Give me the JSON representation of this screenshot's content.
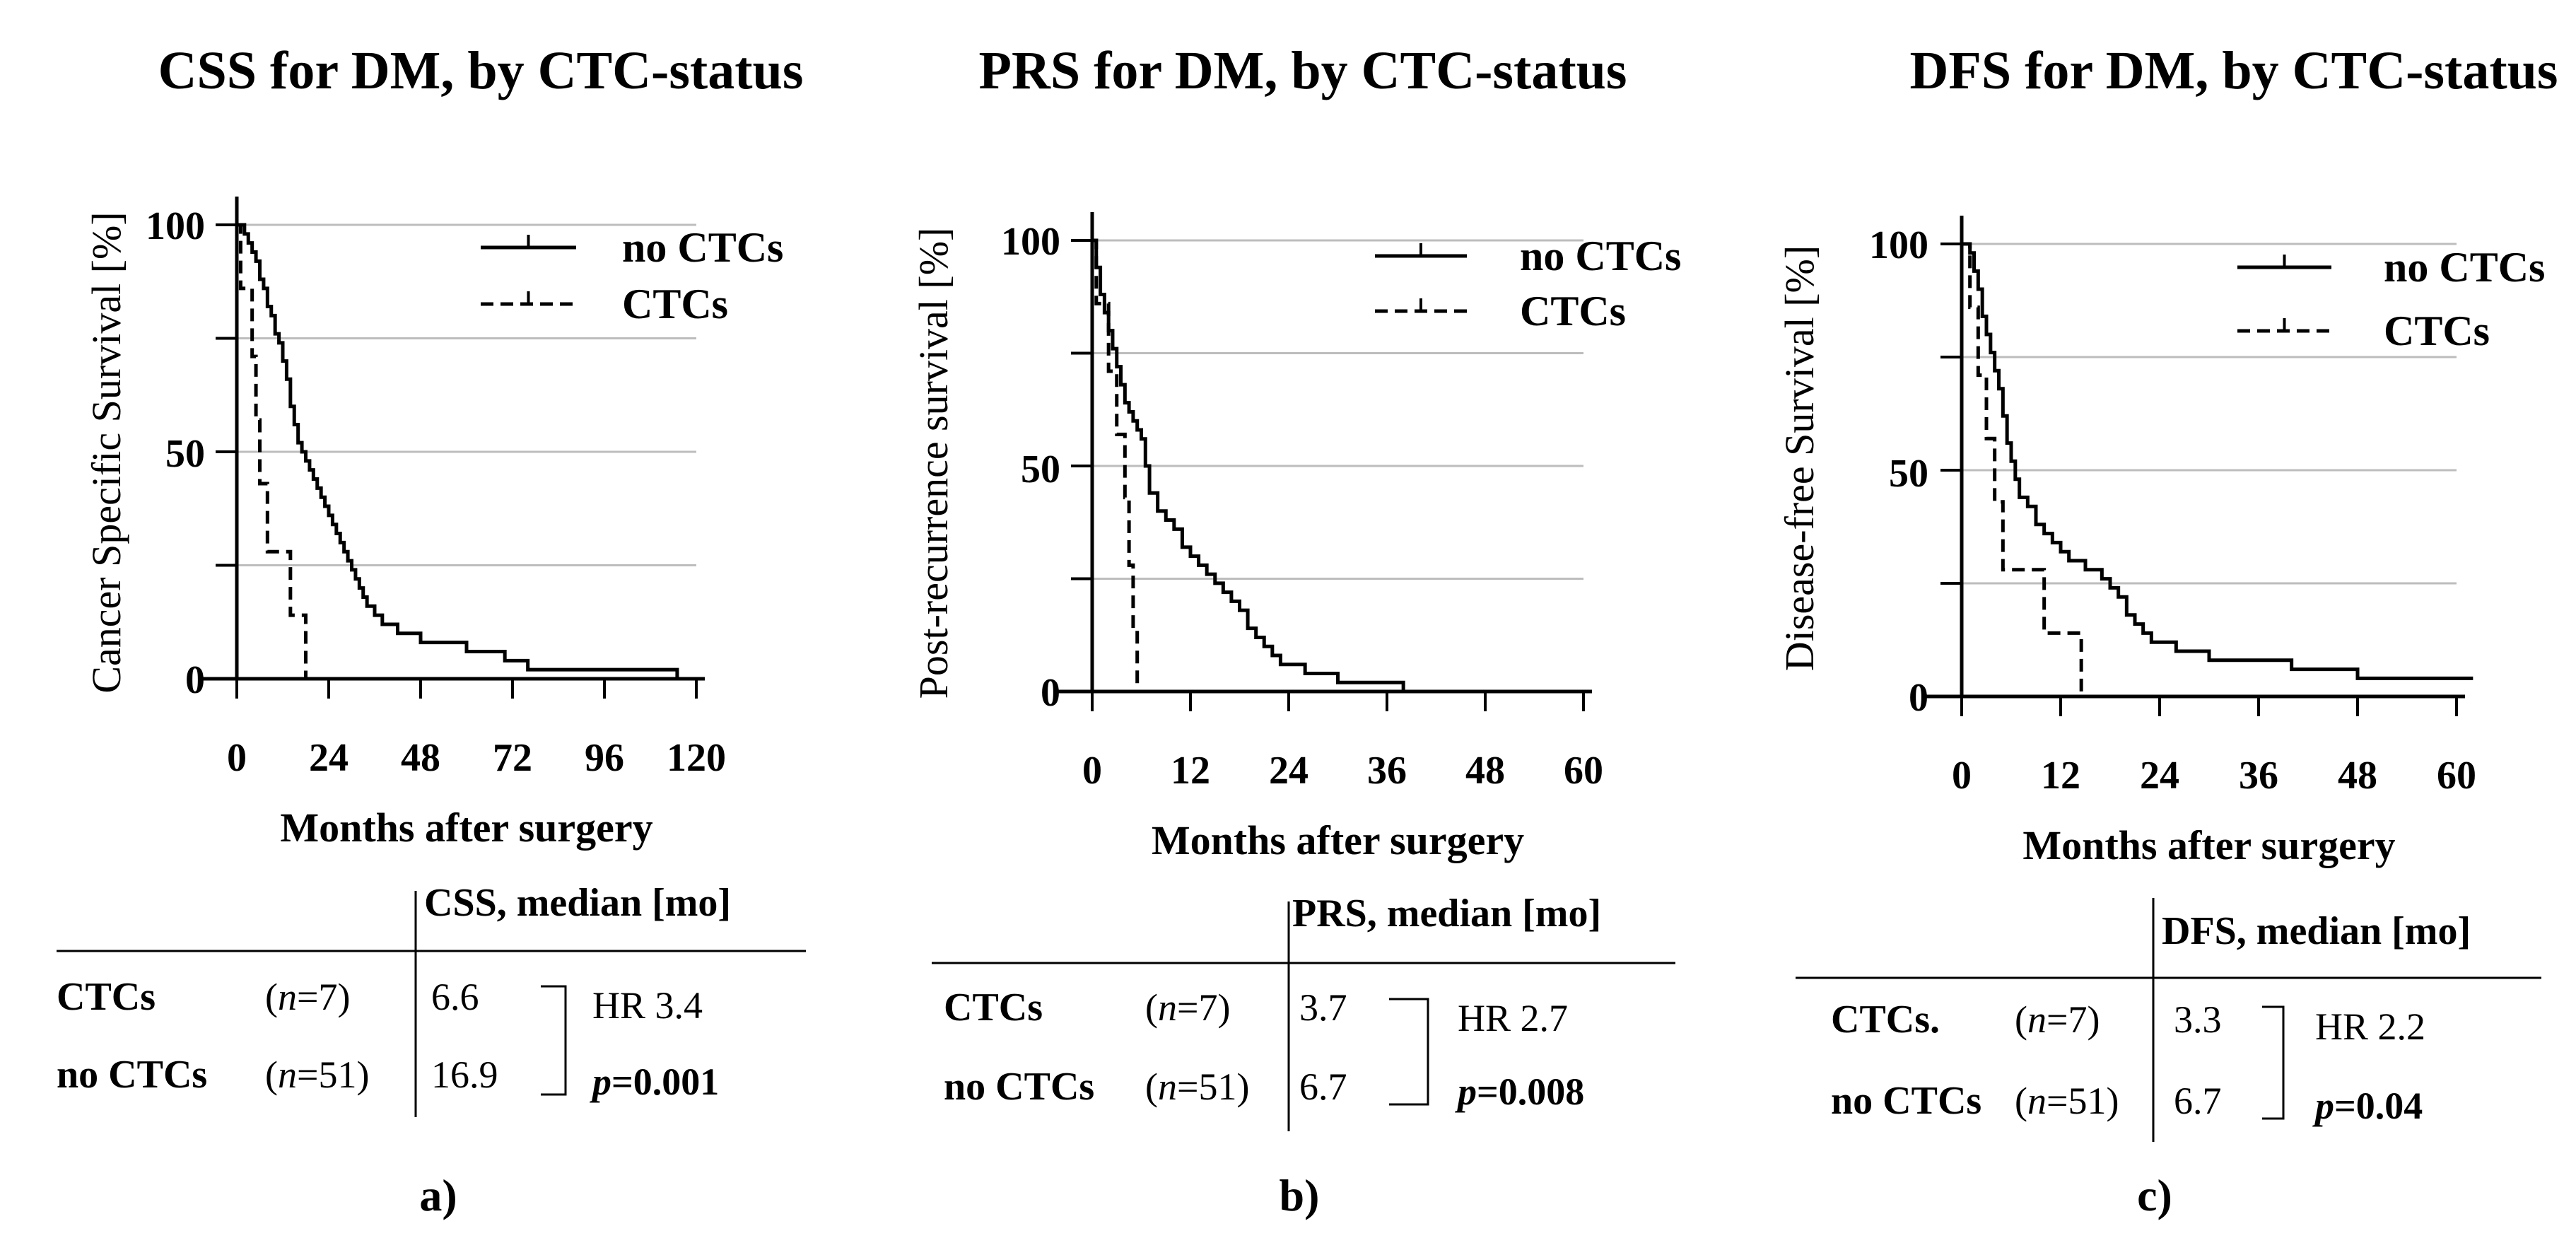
{
  "chart_data": [
    {
      "type": "line",
      "panel_label": "a)",
      "title": "CSS for DM, by CTC-status",
      "ylabel": "Cancer Specific Survival  [%]",
      "xlabel": "Months after surgery",
      "xlim": [
        0,
        120
      ],
      "ylim": [
        0,
        100
      ],
      "xticks": [
        "0",
        "24",
        "48",
        "72",
        "96",
        "120"
      ],
      "yticks": [
        "0",
        "50",
        "100"
      ],
      "grid": "horizontal",
      "series": [
        {
          "name": "no CTCs",
          "style": "solid",
          "x": [
            0,
            2,
            3,
            4,
            5,
            6,
            7,
            8,
            9,
            10,
            11,
            12,
            13,
            14,
            15,
            16,
            17,
            18,
            19,
            20,
            21,
            22,
            23,
            24,
            25,
            26,
            27,
            28,
            29,
            30,
            31,
            32,
            33,
            34,
            36,
            38,
            42,
            48,
            55,
            60,
            70,
            76,
            85,
            96,
            108,
            115
          ],
          "y": [
            100,
            98,
            96,
            94,
            92,
            88,
            86,
            82,
            80,
            76,
            74,
            70,
            66,
            60,
            56,
            52,
            50,
            48,
            46,
            44,
            42,
            40,
            38,
            36,
            34,
            32,
            30,
            28,
            26,
            24,
            22,
            20,
            18,
            16,
            14,
            12,
            10,
            8,
            8,
            6,
            4,
            2,
            2,
            2,
            2,
            0
          ]
        },
        {
          "name": "CTCs",
          "style": "dashed",
          "x": [
            0,
            1,
            2,
            4,
            5,
            6,
            7,
            8,
            10,
            12,
            14,
            17,
            18,
            19
          ],
          "y": [
            100,
            86,
            86,
            71,
            57,
            43,
            43,
            28,
            28,
            28,
            14,
            14,
            0,
            0
          ]
        }
      ]
    },
    {
      "type": "line",
      "panel_label": "b)",
      "title": "PRS for DM, by CTC-status",
      "ylabel": "Post-recurrence survival  [%]",
      "xlabel": "Months after surgery",
      "xlim": [
        0,
        60
      ],
      "ylim": [
        0,
        100
      ],
      "xticks": [
        "0",
        "12",
        "24",
        "36",
        "48",
        "60"
      ],
      "yticks": [
        "0",
        "50",
        "100"
      ],
      "grid": "horizontal",
      "series": [
        {
          "name": "no CTCs",
          "style": "solid",
          "x": [
            0,
            0.5,
            1,
            1.5,
            2,
            2.5,
            3,
            3.5,
            4,
            4.5,
            5,
            5.5,
            6,
            6.5,
            7,
            8,
            9,
            10,
            11,
            12,
            13,
            14,
            15,
            16,
            17,
            18,
            19,
            20,
            21,
            22,
            23,
            24,
            26,
            28,
            30,
            32,
            34,
            36,
            38
          ],
          "y": [
            100,
            94,
            88,
            84,
            80,
            76,
            72,
            68,
            64,
            62,
            60,
            58,
            56,
            50,
            44,
            40,
            38,
            36,
            32,
            30,
            28,
            26,
            24,
            22,
            20,
            18,
            14,
            12,
            10,
            8,
            6,
            6,
            4,
            4,
            2,
            2,
            2,
            2,
            0
          ]
        },
        {
          "name": "CTCs",
          "style": "dashed",
          "x": [
            0,
            0.5,
            1,
            2,
            3,
            4,
            4.5,
            5,
            5.5
          ],
          "y": [
            100,
            86,
            86,
            71,
            57,
            43,
            28,
            14,
            0
          ]
        }
      ]
    },
    {
      "type": "line",
      "panel_label": "c)",
      "title": "DFS for DM, by CTC-status",
      "ylabel": "Disease-free Survival  [%]",
      "xlabel": "Months after surgery",
      "xlim": [
        0,
        60
      ],
      "ylim": [
        0,
        100
      ],
      "xticks": [
        "0",
        "12",
        "24",
        "36",
        "48",
        "60"
      ],
      "yticks": [
        "0",
        "50",
        "100"
      ],
      "grid": "horizontal",
      "series": [
        {
          "name": "no CTCs",
          "style": "solid",
          "x": [
            0,
            1,
            1.5,
            2,
            2.5,
            3,
            3.5,
            4,
            4.5,
            5,
            5.5,
            6,
            6.5,
            7,
            8,
            9,
            10,
            11,
            12,
            13,
            14,
            15,
            16,
            17,
            18,
            19,
            20,
            21,
            22,
            23,
            24,
            26,
            28,
            30,
            33,
            36,
            40,
            44,
            48,
            52,
            56,
            62
          ],
          "y": [
            100,
            98,
            94,
            90,
            84,
            80,
            76,
            72,
            68,
            62,
            56,
            52,
            48,
            44,
            42,
            38,
            36,
            34,
            32,
            30,
            30,
            28,
            28,
            26,
            24,
            22,
            18,
            16,
            14,
            12,
            12,
            10,
            10,
            8,
            8,
            8,
            6,
            6,
            4,
            4,
            4,
            4
          ]
        },
        {
          "name": "CTCs",
          "style": "dashed",
          "x": [
            0,
            1,
            2,
            3,
            4,
            5,
            6,
            9,
            10,
            12,
            13,
            14,
            14.5
          ],
          "y": [
            100,
            86,
            71,
            57,
            43,
            28,
            28,
            28,
            14,
            14,
            14,
            14,
            0
          ]
        }
      ]
    }
  ],
  "legend": {
    "no_ctcs": "no CTCs",
    "ctcs": "CTCs"
  },
  "tables": [
    {
      "header": "CSS, median [mo]",
      "rows": [
        {
          "group": "CTCs",
          "n": "(n=7)",
          "n_label": "n",
          "n_value": "=7",
          "median": "6.6"
        },
        {
          "group": "no CTCs",
          "n": "(n=51)",
          "n_label": "n",
          "n_value": "=51",
          "median": "16.9"
        }
      ],
      "hr": "HR 3.4",
      "p_label": "p",
      "p_value": "=0.001"
    },
    {
      "header": "PRS, median [mo]",
      "rows": [
        {
          "group": "CTCs",
          "n": "(n=7)",
          "n_label": "n",
          "n_value": "=7",
          "median": "3.7"
        },
        {
          "group": "no CTCs",
          "n": "(n=51)",
          "n_label": "n",
          "n_value": "=51",
          "median": "6.7"
        }
      ],
      "hr": "HR 2.7",
      "p_label": "p",
      "p_value": "=0.008"
    },
    {
      "header": "DFS, median [mo]",
      "rows": [
        {
          "group": "CTCs.",
          "n": "(n=7)",
          "n_label": "n",
          "n_value": "=7",
          "median": "3.3"
        },
        {
          "group": "no CTCs",
          "n": "(n=51)",
          "n_label": "n",
          "n_value": "=51",
          "median": "6.7"
        }
      ],
      "hr": "HR 2.2",
      "p_label": "p",
      "p_value": "=0.04"
    }
  ],
  "colors": {
    "line": "#000000",
    "grid": "#bdbdbd",
    "background": "#ffffff"
  }
}
